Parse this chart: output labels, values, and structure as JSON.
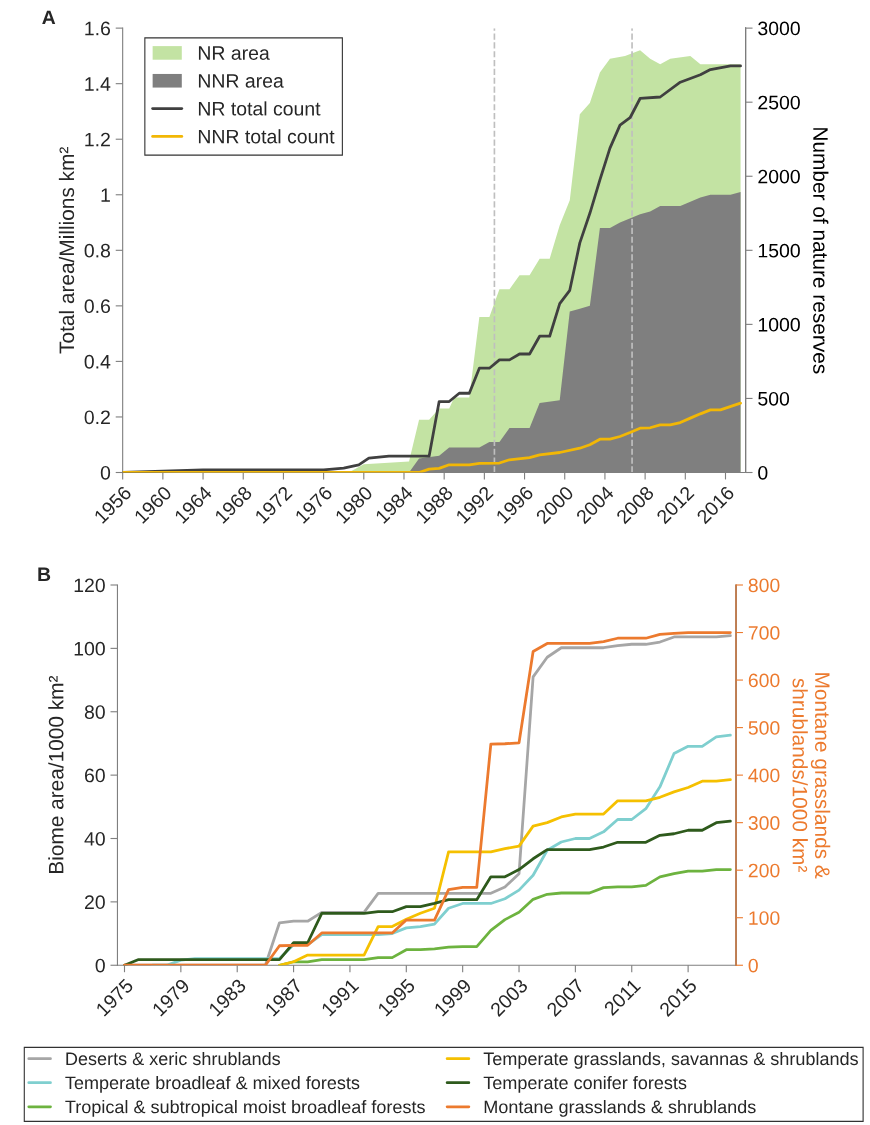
{
  "chart_data": [
    {
      "type": "area",
      "title": "A",
      "ylabel": "Total area/Millions km²",
      "y2label": "Number of nature reserves",
      "xlim": [
        1956,
        2018
      ],
      "xticks": [
        1956,
        1960,
        1964,
        1968,
        1972,
        1976,
        1980,
        1984,
        1988,
        1992,
        1996,
        2000,
        2004,
        2008,
        2012,
        2016
      ],
      "ylim": [
        0,
        1.6
      ],
      "yticks": [
        0,
        0.2,
        0.4,
        0.6,
        0.8,
        1,
        1.2,
        1.4,
        1.6
      ],
      "y2lim": [
        0,
        3000
      ],
      "y2ticks": [
        0,
        500,
        1000,
        1500,
        2000,
        2500,
        3000
      ],
      "legend": "top left",
      "grid": false,
      "ref_lines": [
        {
          "axis": "x",
          "value": 1993,
          "color": "#bfbfbf",
          "line_style": "dashed"
        },
        {
          "axis": "x",
          "value": 2006.7,
          "color": "#bfbfbf",
          "line_style": "dashed"
        }
      ],
      "series": [
        {
          "name": "NR area",
          "type": "area",
          "color": "#c3e3a3",
          "x": [
            1956,
            1978.5,
            1980,
            1984.5,
            1985.5,
            1986.5,
            1987.5,
            1988.5,
            1989,
            1990.5,
            1991.5,
            1992.5,
            1993,
            1993.5,
            1994.5,
            1995.5,
            1996.5,
            1997.5,
            1998.5,
            1999.5,
            2000.5,
            2001.5,
            2002.5,
            2003.5,
            2004.5,
            2006,
            2007.5,
            2008.5,
            2009.5,
            2010.5,
            2012.5,
            2013.5,
            2017.5
          ],
          "values": [
            0,
            0,
            0.03,
            0.04,
            0.19,
            0.19,
            0.23,
            0.23,
            0.27,
            0.27,
            0.56,
            0.56,
            0.61,
            0.66,
            0.66,
            0.71,
            0.71,
            0.77,
            0.77,
            0.89,
            0.98,
            1.29,
            1.33,
            1.44,
            1.49,
            1.5,
            1.52,
            1.49,
            1.47,
            1.49,
            1.5,
            1.47,
            1.47
          ]
        },
        {
          "name": "NNR area",
          "type": "area",
          "color": "#7f7f7f",
          "x": [
            1956,
            1984.5,
            1985.5,
            1987.5,
            1988.5,
            1991.5,
            1992.5,
            1993.5,
            1994.5,
            1996.5,
            1997.5,
            1999.5,
            2000.5,
            2001.5,
            2002.5,
            2003.5,
            2004.5,
            2005.5,
            2007.5,
            2008.5,
            2009.5,
            2011.5,
            2013.5,
            2014.5,
            2016.5,
            2017.5
          ],
          "values": [
            0,
            0,
            0.05,
            0.06,
            0.09,
            0.09,
            0.11,
            0.11,
            0.16,
            0.16,
            0.25,
            0.26,
            0.58,
            0.59,
            0.6,
            0.88,
            0.88,
            0.9,
            0.93,
            0.94,
            0.96,
            0.96,
            0.99,
            1,
            1,
            1.01
          ]
        },
        {
          "name": "NR total count",
          "type": "line",
          "axis": "y2",
          "color": "#404040",
          "x": [
            1956,
            1960,
            1964,
            1976,
            1978,
            1979.5,
            1980.5,
            1982.5,
            1986.5,
            1987.5,
            1988.5,
            1989.5,
            1990.5,
            1991.5,
            1992.5,
            1993.5,
            1994.5,
            1995.5,
            1996.5,
            1997.5,
            1998.5,
            1999.5,
            2000.5,
            2001.5,
            2002.5,
            2003.5,
            2004.5,
            2005.5,
            2006.5,
            2007.5,
            2009.5,
            2011.5,
            2013.5,
            2014.5,
            2016.5,
            2017.5
          ],
          "values": [
            0,
            10,
            18,
            18,
            30,
            52,
            97,
            110,
            110,
            479,
            479,
            535,
            535,
            704,
            704,
            760,
            760,
            800,
            800,
            920,
            920,
            1140,
            1230,
            1550,
            1750,
            1975,
            2190,
            2345,
            2395,
            2525,
            2535,
            2635,
            2685,
            2720,
            2745,
            2745
          ]
        },
        {
          "name": "NNR total count",
          "type": "line",
          "axis": "y2",
          "color": "#f2b705",
          "x": [
            1956,
            1985.5,
            1986.5,
            1987.5,
            1988.5,
            1990.5,
            1991.5,
            1993.5,
            1994.5,
            1996.5,
            1997.5,
            1999.5,
            2001.5,
            2002.5,
            2003.5,
            2004.5,
            2005.5,
            2006.5,
            2007.5,
            2008.5,
            2009.5,
            2010.5,
            2011.5,
            2012.5,
            2013.5,
            2014.5,
            2015.5,
            2017.5
          ],
          "values": [
            0,
            0,
            23,
            28,
            52,
            52,
            62,
            64,
            86,
            101,
            119,
            135,
            164,
            187,
            225,
            225,
            243,
            270,
            299,
            302,
            322,
            322,
            337,
            367,
            396,
            423,
            423,
            468
          ]
        }
      ]
    },
    {
      "type": "line",
      "title": "B",
      "ylabel": "Biome area/1000 km²",
      "y2label": "Montane grasslands &\nshrublands/1000 km²",
      "xlim": [
        1974.5,
        2018.4
      ],
      "xticks": [
        1975,
        1979,
        1983,
        1987,
        1991,
        1995,
        1999,
        2003,
        2007,
        2011,
        2015
      ],
      "ylim": [
        0,
        120
      ],
      "yticks": [
        0,
        20,
        40,
        60,
        80,
        100,
        120
      ],
      "y2lim": [
        0,
        800
      ],
      "y2ticks": [
        0,
        100,
        200,
        300,
        400,
        500,
        600,
        700,
        800
      ],
      "legend": "bottom",
      "grid": false,
      "x": [
        1975,
        1976,
        1977,
        1978,
        1979,
        1980,
        1981,
        1982,
        1983,
        1984,
        1985,
        1986,
        1987,
        1988,
        1989,
        1990,
        1991,
        1992,
        1993,
        1994,
        1995,
        1996,
        1997,
        1998,
        1999,
        2000,
        2001,
        2002,
        2003,
        2004,
        2005,
        2006,
        2007,
        2008,
        2009,
        2010,
        2011,
        2012,
        2013,
        2014,
        2015,
        2016,
        2017,
        2018
      ],
      "series": [
        {
          "name": "Deserts & xeric shrublands",
          "color": "#a6a6a6",
          "values": [
            0,
            0,
            0,
            0,
            0,
            0,
            0,
            0,
            0,
            0,
            0,
            13.4,
            13.9,
            13.9,
            16.7,
            16.7,
            16.7,
            16.7,
            22.7,
            22.7,
            22.7,
            22.7,
            22.7,
            22.7,
            22.7,
            22.7,
            22.7,
            24.7,
            28.9,
            91,
            97.2,
            100.2,
            100.2,
            100.2,
            100.2,
            100.9,
            101.3,
            101.3,
            102,
            103.6,
            103.6,
            103.6,
            103.6,
            104
          ]
        },
        {
          "name": "Temperate broadleaf & mixed forests",
          "color": "#7fcfcf",
          "values": [
            null,
            null,
            0,
            0,
            1.6,
            2.1,
            2.1,
            2.1,
            2.1,
            2.1,
            2.1,
            2.1,
            6.5,
            6.5,
            9.7,
            9.7,
            9.7,
            9.7,
            9.7,
            10,
            11.8,
            12.2,
            13,
            18,
            19.5,
            19.5,
            19.5,
            21,
            23.7,
            28.4,
            36.3,
            38.9,
            40,
            40,
            42.1,
            46,
            46,
            49.4,
            56.3,
            66.8,
            69.1,
            69.1,
            72.1,
            72.6
          ]
        },
        {
          "name": "Tropical & subtropical moist broadleaf forests",
          "color": "#6db33f",
          "values": [
            null,
            null,
            null,
            null,
            null,
            null,
            null,
            null,
            null,
            null,
            null,
            0,
            1.1,
            1.1,
            1.8,
            1.8,
            1.8,
            1.8,
            2.4,
            2.4,
            4.9,
            4.9,
            5.2,
            5.7,
            5.9,
            5.9,
            11,
            14.4,
            16.7,
            20.8,
            22.4,
            22.8,
            22.8,
            22.8,
            24.5,
            24.7,
            24.7,
            25.2,
            27.9,
            28.9,
            29.7,
            29.7,
            30.2,
            30.2
          ]
        },
        {
          "name": "Temperate grasslands, savannas & shrublands",
          "color": "#f5c000",
          "values": [
            null,
            null,
            null,
            null,
            null,
            null,
            null,
            null,
            null,
            null,
            null,
            0,
            1.1,
            3.2,
            3.2,
            3.2,
            3.2,
            3.2,
            12.2,
            12.2,
            14.5,
            16.4,
            18,
            35.8,
            35.8,
            35.8,
            35.8,
            36.8,
            37.6,
            43.9,
            45,
            46.8,
            47.7,
            47.7,
            47.7,
            51.9,
            51.9,
            51.9,
            53,
            54.7,
            56.1,
            58.1,
            58.1,
            58.6
          ]
        },
        {
          "name": "Temperate conifer forests",
          "color": "#2e5a1c",
          "values": [
            0,
            1.8,
            1.8,
            1.8,
            1.8,
            1.8,
            1.8,
            1.8,
            1.8,
            1.8,
            1.8,
            1.8,
            7.1,
            7.1,
            16.4,
            16.4,
            16.4,
            16.4,
            16.9,
            16.9,
            18.5,
            18.5,
            19.5,
            20.7,
            20.7,
            20.7,
            27.9,
            27.9,
            30.2,
            33.6,
            36.5,
            36.5,
            36.5,
            36.5,
            37.3,
            38.8,
            38.8,
            38.8,
            41,
            41.5,
            42.6,
            42.6,
            45,
            45.5
          ]
        },
        {
          "name": "Montane grasslands & shrublands",
          "color": "#ec7a2e",
          "axis": "y2",
          "values": [
            0,
            0,
            0,
            0,
            0,
            0,
            0,
            0,
            0,
            0,
            0,
            41,
            42,
            42,
            68,
            68,
            68,
            68,
            68,
            68,
            95,
            95,
            95,
            159,
            164,
            164,
            465,
            466,
            468,
            660,
            677,
            677,
            677,
            677,
            681,
            688,
            688,
            688,
            696,
            698,
            700,
            700,
            700,
            700
          ]
        }
      ]
    }
  ]
}
